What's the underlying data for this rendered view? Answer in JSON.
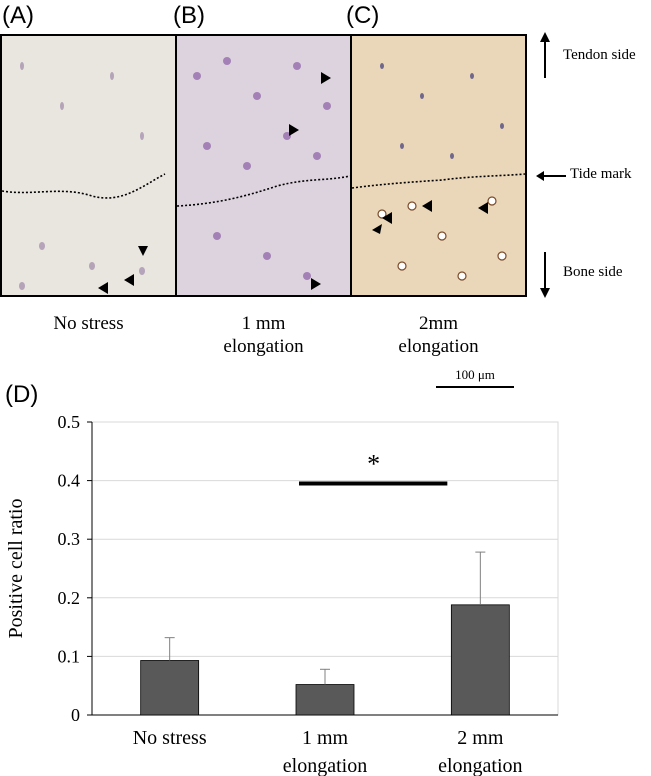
{
  "panels": [
    {
      "letter": "(A)",
      "caption": [
        "No stress"
      ]
    },
    {
      "letter": "(B)",
      "caption": [
        "1 mm",
        "elongation"
      ]
    },
    {
      "letter": "(C)",
      "caption": [
        "2mm",
        "elongation"
      ]
    }
  ],
  "side_labels": {
    "tendon": "Tendon side",
    "tide": "Tide mark",
    "bone": "Bone side"
  },
  "scale_bar": "100 μm",
  "chart_panel_letter": "(D)",
  "colors": {
    "bar": "#595959",
    "grid": "#d9d9d9",
    "axis": "#000000",
    "micro_a": "#e9e5df",
    "micro_b": "#ddd3df",
    "micro_c": "#ead6b8"
  },
  "chart_data": {
    "type": "bar",
    "categories": [
      [
        "No stress"
      ],
      [
        "1 mm",
        "elongation"
      ],
      [
        "2 mm",
        "elongation"
      ]
    ],
    "values": [
      0.093,
      0.052,
      0.188
    ],
    "error": [
      0.039,
      0.026,
      0.09
    ],
    "ylabel": "Positive cell ratio",
    "ylim": [
      0,
      0.5
    ],
    "yticks": [
      "0",
      "0.1",
      "0.2",
      "0.3",
      "0.4",
      "0.5"
    ],
    "grid": true,
    "significance": {
      "from": 1,
      "to": 2,
      "label": "*",
      "y": 0.395
    }
  }
}
